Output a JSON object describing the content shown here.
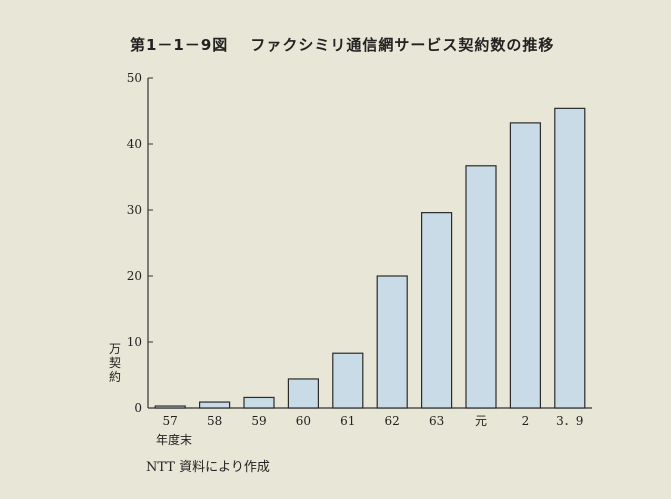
{
  "figure": {
    "number": "第1－1－9図",
    "title": "ファクシミリ通信網サービス契約数の推移"
  },
  "source": "NTT 資料により作成",
  "colors": {
    "bar_fill": "#c9dbe6",
    "bar_stroke": "#2b2b2b",
    "axis": "#333333",
    "background": "#e8e6d6"
  },
  "chart_data": {
    "type": "bar",
    "title": "ファクシミリ通信網サービス契約数の推移",
    "categories": [
      "57",
      "58",
      "59",
      "60",
      "61",
      "62",
      "63",
      "元",
      "2",
      "3．9"
    ],
    "values": [
      0.3,
      0.9,
      1.6,
      4.4,
      8.3,
      20,
      29.6,
      36.7,
      43.2,
      45.4
    ],
    "xlabel": "年度末",
    "ylabel": "万契約",
    "ylim": [
      0,
      50
    ],
    "yticks": [
      0,
      10,
      20,
      30,
      40,
      50
    ],
    "grid": false,
    "legend": "none"
  }
}
